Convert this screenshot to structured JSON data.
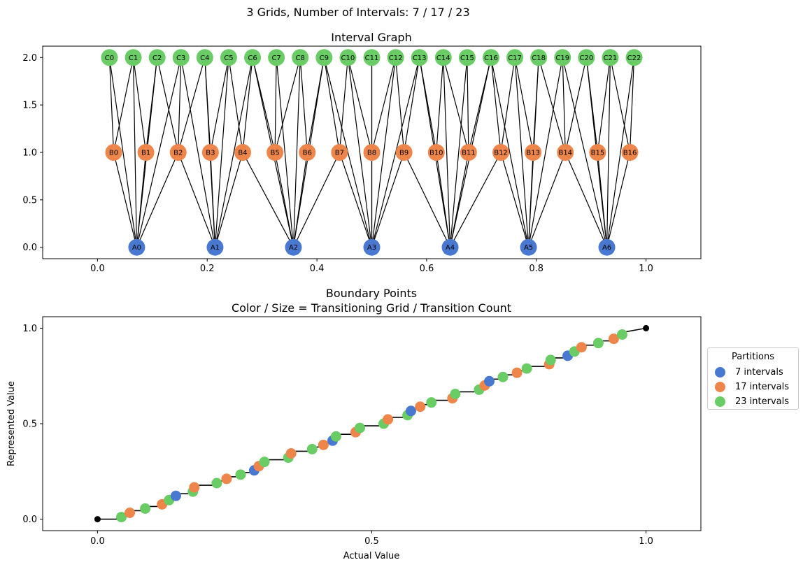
{
  "figure": {
    "suptitle": "3 Grids, Number of Intervals: 7 / 17 / 23"
  },
  "colors": {
    "A": "#4878d0",
    "B": "#ee854a",
    "C": "#6acc64",
    "line": "#000000",
    "axes": "#000000"
  },
  "chart_data": [
    {
      "type": "network",
      "title": "Interval Graph",
      "xlim": [
        -0.1,
        1.1
      ],
      "ylim": [
        -0.12,
        2.12
      ],
      "xticks": [
        "0.0",
        "0.2",
        "0.4",
        "0.6",
        "0.8",
        "1.0"
      ],
      "yticks": [
        "0.0",
        "0.5",
        "1.0",
        "1.5",
        "2.0"
      ],
      "levels": [
        {
          "prefix": "A",
          "y": 0,
          "count": 7
        },
        {
          "prefix": "B",
          "y": 1,
          "count": 17
        },
        {
          "prefix": "C",
          "y": 2,
          "count": 23
        }
      ],
      "edges": "each A/B/C interval node is connected to every node on the other rows whose interval overlaps it"
    },
    {
      "type": "scatter",
      "title": "Boundary Points",
      "subtitle": "Color / Size = Transitioning Grid / Transition Count",
      "xlabel": "Actual Value",
      "ylabel": "Represented Value",
      "xlim": [
        -0.1,
        1.1
      ],
      "ylim": [
        -0.06,
        1.06
      ],
      "xticks": [
        "0.0",
        "0.5",
        "1.0"
      ],
      "yticks": [
        "0.0",
        "0.5",
        "1.0"
      ],
      "legend": {
        "title": "Partitions",
        "placement": "right",
        "entries": [
          "7 intervals",
          "17 intervals",
          "23 intervals"
        ]
      },
      "series": [
        {
          "name": "7 intervals",
          "intervals": 7
        },
        {
          "name": "17 intervals",
          "intervals": 17
        },
        {
          "name": "23 intervals",
          "intervals": 23
        }
      ],
      "endpoints": [
        [
          0,
          0
        ],
        [
          1,
          1
        ]
      ]
    }
  ]
}
